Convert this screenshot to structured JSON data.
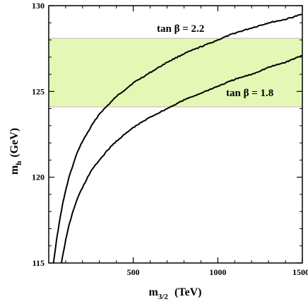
{
  "chart_data": {
    "type": "line",
    "xlabel": {
      "main": "m",
      "sub": "3/2",
      "unit": "(TeV)"
    },
    "ylabel": {
      "main": "m",
      "sub": "h",
      "unit": "(GeV)"
    },
    "xlim": [
      0,
      1500
    ],
    "ylim": [
      115,
      130
    ],
    "x_ticks": [
      500,
      1000,
      1500
    ],
    "y_ticks": [
      115,
      120,
      125,
      130
    ],
    "x_tick_labels": [
      "500",
      "1000",
      "1500"
    ],
    "y_tick_labels": [
      "115",
      "120",
      "125",
      "130"
    ],
    "grid": false,
    "band": {
      "y_low": 124.1,
      "y_high": 128.1,
      "color": "#e4f7b5"
    },
    "series": [
      {
        "name": "tan β = 2.2",
        "x": [
          28,
          40,
          50,
          60,
          70,
          80,
          90,
          100,
          120,
          140,
          160,
          180,
          200,
          230,
          260,
          300,
          350,
          400,
          450,
          500,
          550,
          600,
          700,
          800,
          900,
          1000,
          1100,
          1200,
          1300,
          1400,
          1500
        ],
        "y": [
          115.0,
          115.9,
          116.6,
          117.2,
          117.8,
          118.3,
          118.8,
          119.2,
          120.0,
          120.6,
          121.2,
          121.7,
          122.1,
          122.6,
          123.1,
          123.7,
          124.2,
          124.7,
          125.1,
          125.5,
          125.8,
          126.1,
          126.7,
          127.2,
          127.6,
          128.0,
          128.4,
          128.7,
          129.0,
          129.2,
          129.5
        ]
      },
      {
        "name": "tan β = 1.8",
        "x": [
          75,
          90,
          100,
          120,
          140,
          160,
          180,
          200,
          230,
          260,
          300,
          350,
          400,
          450,
          500,
          550,
          600,
          700,
          800,
          900,
          1000,
          1100,
          1200,
          1300,
          1400,
          1500
        ],
        "y": [
          115.0,
          115.8,
          116.3,
          117.2,
          117.9,
          118.5,
          119.0,
          119.4,
          120.0,
          120.5,
          121.0,
          121.6,
          122.1,
          122.5,
          122.9,
          123.2,
          123.5,
          124.0,
          124.5,
          124.9,
          125.3,
          125.7,
          126.0,
          126.4,
          126.7,
          127.1
        ]
      }
    ],
    "annotations": [
      {
        "text": "tan β = 2.2",
        "series": 0
      },
      {
        "text": "tan β = 1.8",
        "series": 1
      }
    ],
    "colors": {
      "line": "#000000",
      "frame": "#000000",
      "band_edge": "#bbbbbb"
    }
  }
}
